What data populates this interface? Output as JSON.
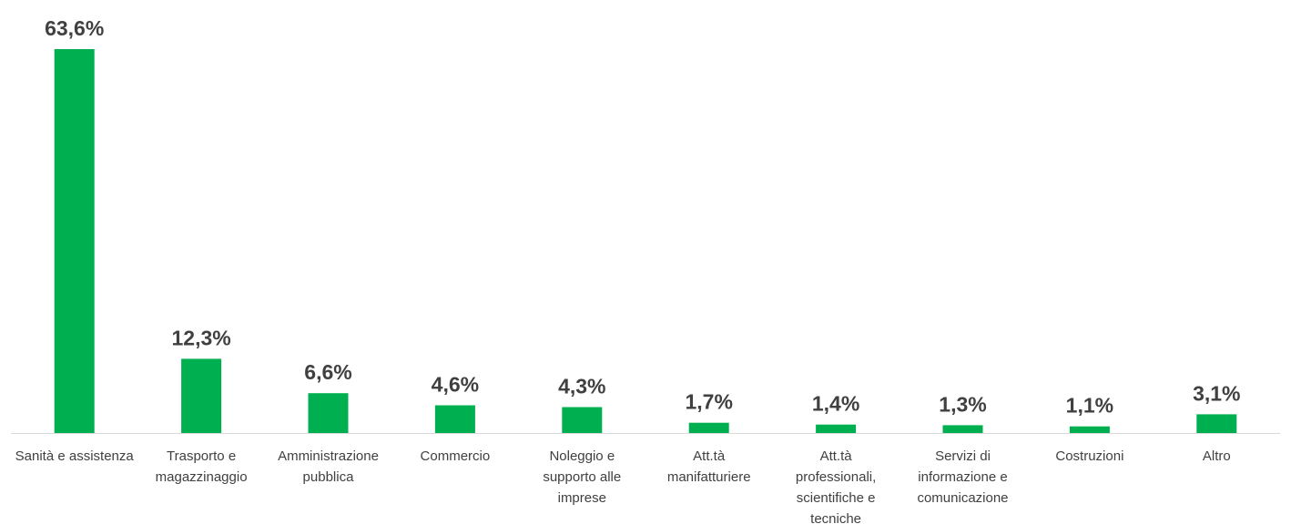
{
  "chart_data": {
    "type": "bar",
    "categories": [
      "Sanità e assistenza",
      "Trasporto e magazzinaggio",
      "Amministrazione pubblica",
      "Commercio",
      "Noleggio e supporto alle imprese",
      "Att.tà manifatturiere",
      "Att.tà professionali, scientifiche e tecniche",
      "Servizi di informazione e comunicazione",
      "Costruzioni",
      "Altro"
    ],
    "category_lines": [
      [
        "Sanità e assistenza"
      ],
      [
        "Trasporto e",
        "magazzinaggio"
      ],
      [
        "Amministrazione",
        "pubblica"
      ],
      [
        "Commercio"
      ],
      [
        "Noleggio e",
        "supporto alle",
        "imprese"
      ],
      [
        "Att.tà",
        "manifatturiere"
      ],
      [
        "Att.tà",
        "professionali,",
        "scientifiche e",
        "tecniche"
      ],
      [
        "Servizi di",
        "informazione e",
        "comunicazione"
      ],
      [
        "Costruzioni"
      ],
      [
        "Altro"
      ]
    ],
    "values": [
      63.6,
      12.3,
      6.6,
      4.6,
      4.3,
      1.7,
      1.4,
      1.3,
      1.1,
      3.1
    ],
    "value_labels": [
      "63,6%",
      "12,3%",
      "6,6%",
      "4,6%",
      "4,3%",
      "1,7%",
      "1,4%",
      "1,3%",
      "1,1%",
      "3,1%"
    ],
    "ylim": [
      0,
      63.6
    ],
    "grid": false,
    "legend": "none",
    "bar_color": "#00B050",
    "axis_color": "#D9D9D9",
    "text_color": "#404040"
  }
}
